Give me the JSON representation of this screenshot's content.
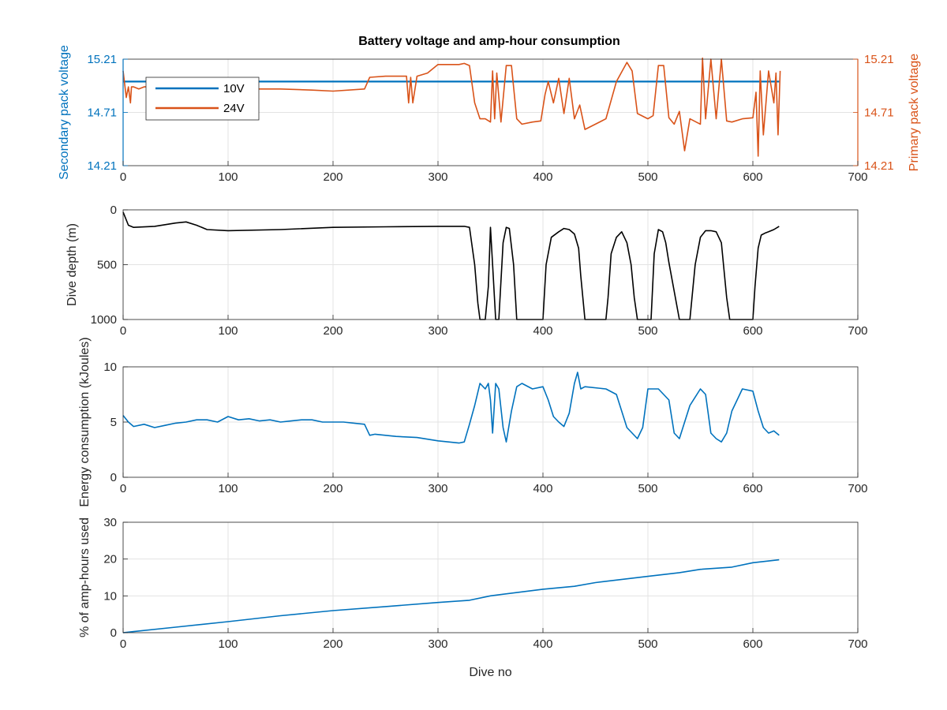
{
  "chart_data": [
    {
      "type": "line",
      "title": "Battery voltage and amp-hour consumption",
      "xlabel": "",
      "ylabel": "Secondary pack voltage",
      "ylabel_right": "Primary pack voltage",
      "xlim": [
        0,
        700
      ],
      "ylim": [
        14.21,
        15.21
      ],
      "ylim_right": [
        14.21,
        15.21
      ],
      "xticks": [
        "0",
        "100",
        "200",
        "300",
        "400",
        "500",
        "600",
        "700"
      ],
      "yticks": [
        "14.21",
        "14.71",
        "15.21"
      ],
      "yticks_right": [
        "14.21",
        "14.71",
        "15.21"
      ],
      "grid": true,
      "legend": "top-left",
      "series": [
        {
          "name": "10V",
          "axis": "left",
          "color": "#0072BD",
          "x": [
            0,
            625
          ],
          "y": [
            15.0,
            15.0
          ]
        },
        {
          "name": "24V",
          "axis": "right",
          "color": "#D95319",
          "x": [
            0,
            3,
            5,
            7,
            8,
            10,
            15,
            20,
            40,
            60,
            80,
            100,
            120,
            150,
            180,
            200,
            230,
            235,
            250,
            270,
            272,
            274,
            276,
            280,
            290,
            300,
            320,
            325,
            330,
            335,
            340,
            345,
            350,
            352,
            354,
            356,
            360,
            365,
            370,
            375,
            380,
            390,
            398,
            402,
            405,
            410,
            415,
            420,
            425,
            430,
            435,
            440,
            450,
            460,
            470,
            480,
            485,
            490,
            500,
            505,
            510,
            515,
            520,
            525,
            530,
            535,
            540,
            550,
            552,
            555,
            560,
            565,
            570,
            575,
            580,
            590,
            600,
            603,
            605,
            607,
            610,
            615,
            620,
            622,
            624,
            626
          ],
          "y": [
            15.1,
            14.85,
            14.95,
            14.8,
            14.95,
            14.95,
            14.93,
            14.95,
            14.95,
            14.95,
            14.94,
            14.93,
            14.93,
            14.93,
            14.92,
            14.91,
            14.93,
            15.04,
            15.05,
            15.05,
            14.8,
            15.04,
            14.8,
            15.05,
            15.08,
            15.16,
            15.16,
            15.17,
            15.15,
            14.8,
            14.65,
            14.65,
            14.62,
            15.1,
            14.65,
            15.08,
            14.62,
            15.15,
            15.15,
            14.65,
            14.6,
            14.62,
            14.63,
            14.88,
            15.0,
            14.8,
            15.03,
            14.7,
            15.03,
            14.65,
            14.78,
            14.55,
            14.6,
            14.65,
            15.0,
            15.18,
            15.1,
            14.7,
            14.65,
            14.68,
            15.15,
            15.15,
            14.66,
            14.6,
            14.72,
            14.35,
            14.65,
            14.6,
            15.22,
            14.65,
            15.21,
            14.65,
            15.21,
            14.63,
            14.62,
            14.65,
            14.66,
            14.9,
            14.3,
            15.1,
            14.5,
            15.1,
            14.8,
            15.08,
            14.5,
            15.1
          ]
        }
      ]
    },
    {
      "type": "line",
      "title": "",
      "xlabel": "",
      "ylabel": "Dive depth (m)",
      "xlim": [
        0,
        700
      ],
      "ylim": [
        0,
        1000
      ],
      "y_reversed": true,
      "xticks": [
        "0",
        "100",
        "200",
        "300",
        "400",
        "500",
        "600",
        "700"
      ],
      "yticks": [
        "0",
        "500",
        "1000"
      ],
      "grid": true,
      "series": [
        {
          "color": "#000000",
          "x": [
            0,
            5,
            10,
            30,
            50,
            60,
            70,
            80,
            100,
            150,
            200,
            250,
            300,
            320,
            325,
            330,
            335,
            338,
            340,
            343,
            345,
            348,
            350,
            352,
            355,
            358,
            362,
            365,
            368,
            372,
            375,
            380,
            395,
            400,
            403,
            408,
            415,
            420,
            425,
            430,
            434,
            436,
            440,
            460,
            462,
            465,
            470,
            475,
            480,
            484,
            487,
            490,
            500,
            503,
            506,
            510,
            514,
            517,
            520,
            530,
            535,
            540,
            545,
            550,
            555,
            560,
            565,
            570,
            575,
            578,
            580,
            600,
            602,
            605,
            608,
            612,
            615,
            620,
            625
          ],
          "y": [
            20,
            140,
            160,
            150,
            120,
            110,
            140,
            180,
            190,
            180,
            160,
            155,
            150,
            150,
            150,
            160,
            500,
            850,
            1000,
            1000,
            1000,
            700,
            160,
            500,
            1000,
            1000,
            300,
            160,
            170,
            500,
            1000,
            1000,
            1000,
            1000,
            500,
            250,
            200,
            170,
            180,
            220,
            350,
            600,
            1000,
            1000,
            800,
            400,
            250,
            200,
            300,
            500,
            800,
            1000,
            1000,
            1000,
            400,
            180,
            200,
            300,
            480,
            1000,
            1000,
            1000,
            500,
            250,
            190,
            190,
            200,
            300,
            800,
            1000,
            1000,
            1000,
            700,
            350,
            230,
            210,
            200,
            180,
            150
          ]
        }
      ]
    },
    {
      "type": "line",
      "title": "",
      "xlabel": "",
      "ylabel": "Energy consumption (kJoules)",
      "xlim": [
        0,
        700
      ],
      "ylim": [
        0,
        10
      ],
      "xticks": [
        "0",
        "100",
        "200",
        "300",
        "400",
        "500",
        "600",
        "700"
      ],
      "yticks": [
        "0",
        "5",
        "10"
      ],
      "grid": true,
      "series": [
        {
          "color": "#0072BD",
          "x": [
            0,
            5,
            10,
            20,
            30,
            40,
            50,
            60,
            70,
            80,
            90,
            100,
            110,
            120,
            130,
            140,
            150,
            160,
            170,
            180,
            190,
            200,
            210,
            220,
            230,
            235,
            240,
            260,
            280,
            300,
            310,
            320,
            325,
            330,
            335,
            340,
            345,
            348,
            350,
            352,
            355,
            358,
            362,
            365,
            370,
            375,
            380,
            390,
            400,
            405,
            410,
            415,
            420,
            425,
            430,
            433,
            436,
            440,
            460,
            470,
            480,
            490,
            495,
            500,
            510,
            520,
            525,
            530,
            540,
            550,
            555,
            560,
            565,
            570,
            575,
            580,
            590,
            600,
            605,
            610,
            615,
            620,
            625
          ],
          "y": [
            5.6,
            5.0,
            4.6,
            4.8,
            4.5,
            4.7,
            4.9,
            5.0,
            5.2,
            5.2,
            5.0,
            5.5,
            5.2,
            5.3,
            5.1,
            5.2,
            5.0,
            5.1,
            5.2,
            5.2,
            5.0,
            5.0,
            5.0,
            4.9,
            4.8,
            3.8,
            3.9,
            3.7,
            3.6,
            3.3,
            3.2,
            3.1,
            3.2,
            4.8,
            6.5,
            8.5,
            8.0,
            8.5,
            7.0,
            4.0,
            8.5,
            8.0,
            4.5,
            3.2,
            6.0,
            8.2,
            8.5,
            8.0,
            8.2,
            7.0,
            5.5,
            5.0,
            4.6,
            5.8,
            8.5,
            9.5,
            8.0,
            8.2,
            8.0,
            7.5,
            4.5,
            3.5,
            4.5,
            8.0,
            8.0,
            7.0,
            4.0,
            3.5,
            6.5,
            8.0,
            7.5,
            4.0,
            3.5,
            3.2,
            4.0,
            6.0,
            8.0,
            7.8,
            6.0,
            4.5,
            4.0,
            4.2,
            3.8
          ]
        }
      ]
    },
    {
      "type": "line",
      "title": "",
      "xlabel": "Dive no",
      "ylabel": "% of amp-hours used",
      "xlim": [
        0,
        700
      ],
      "ylim": [
        0,
        30
      ],
      "xticks": [
        "0",
        "100",
        "200",
        "300",
        "400",
        "500",
        "600",
        "700"
      ],
      "yticks": [
        "0",
        "10",
        "20",
        "30"
      ],
      "grid": true,
      "series": [
        {
          "color": "#0072BD",
          "x": [
            0,
            10,
            50,
            100,
            150,
            200,
            250,
            300,
            330,
            350,
            400,
            430,
            450,
            500,
            530,
            550,
            580,
            600,
            625
          ],
          "y": [
            0,
            0.3,
            1.5,
            3.0,
            4.6,
            6.0,
            7.1,
            8.2,
            8.8,
            10.0,
            11.8,
            12.6,
            13.6,
            15.3,
            16.3,
            17.2,
            17.8,
            19.0,
            19.8
          ]
        }
      ]
    }
  ]
}
